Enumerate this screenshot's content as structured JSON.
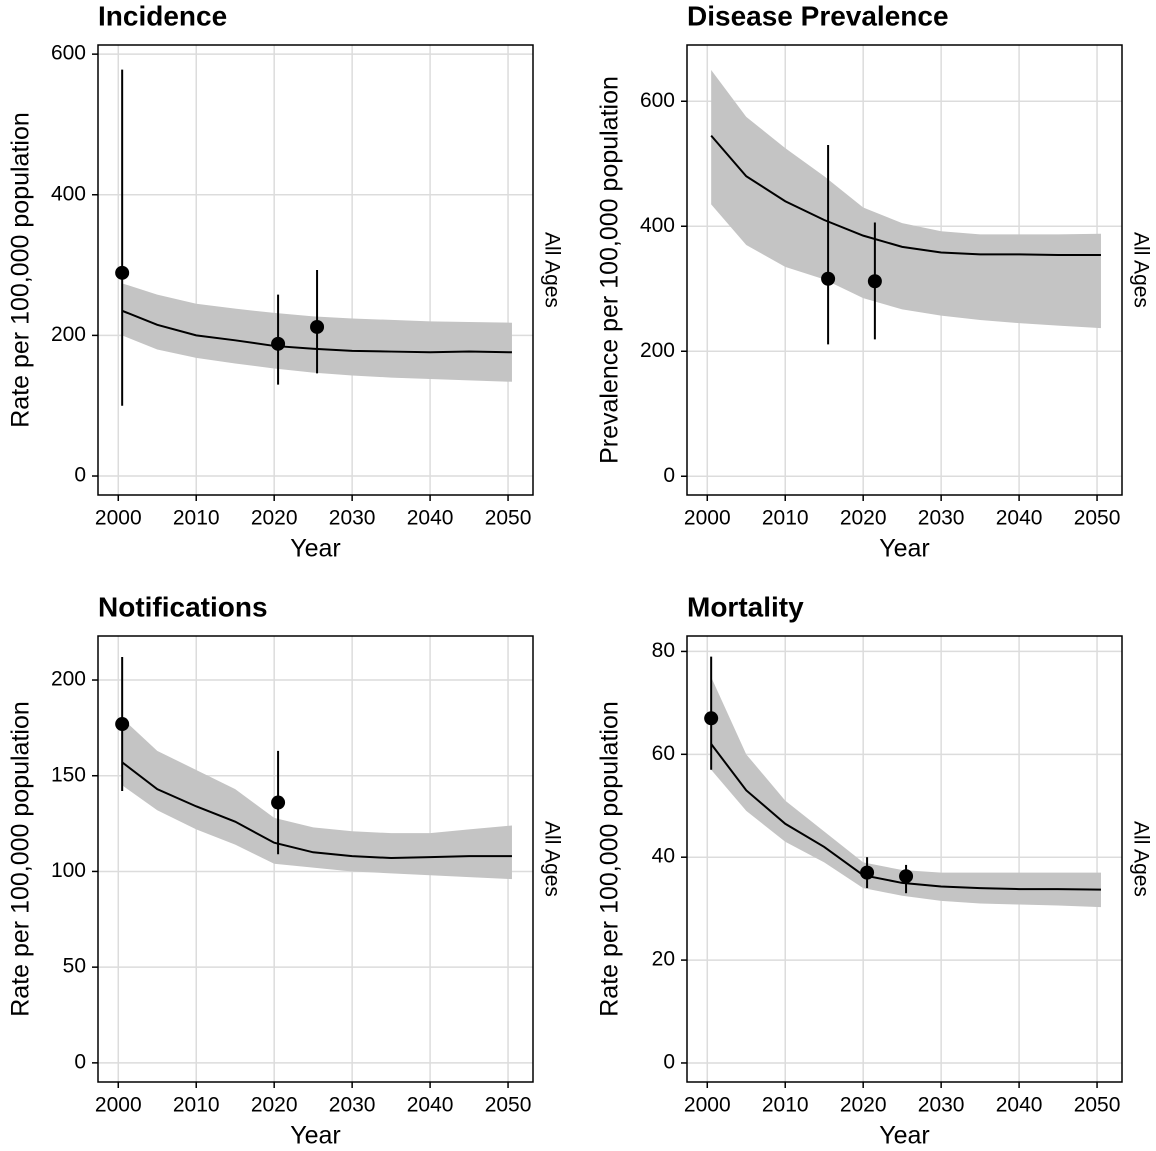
{
  "chart_data": [
    {
      "type": "line",
      "title": "Incidence",
      "xlabel": "Year",
      "ylabel": "Rate per 100,000 population",
      "facet_label": "All Ages",
      "xlim": [
        1997.4,
        2053.2
      ],
      "xticks": [
        2000,
        2010,
        2020,
        2030,
        2040,
        2050
      ],
      "ylim": [
        -27,
        613
      ],
      "yticks": [
        0,
        200,
        400,
        600
      ],
      "grid": true,
      "x": [
        2000.5,
        2005,
        2010,
        2015,
        2020,
        2025,
        2030,
        2035,
        2040,
        2045,
        2050.5
      ],
      "line": {
        "color": "#000000",
        "values": [
          235,
          215,
          200,
          193,
          185,
          181,
          178,
          177,
          176,
          177,
          176
        ]
      },
      "band": {
        "color": "#c4c4c4",
        "lower": [
          200,
          180,
          168,
          160,
          153,
          147,
          143,
          140,
          138,
          136,
          134
        ],
        "upper": [
          274,
          258,
          245,
          238,
          232,
          227,
          224,
          222,
          220,
          219,
          218
        ]
      },
      "points": {
        "color": "#000000",
        "x": [
          2000.5,
          2020.5,
          2025.5
        ],
        "values": [
          289,
          188,
          212
        ],
        "lower": [
          100,
          130,
          146
        ],
        "upper": [
          578,
          258,
          293
        ]
      }
    },
    {
      "type": "line",
      "title": "Disease Prevalence",
      "xlabel": "Year",
      "ylabel": "Prevalence per 100,000 population",
      "facet_label": "All Ages",
      "xlim": [
        1997.4,
        2053.2
      ],
      "xticks": [
        2000,
        2010,
        2020,
        2030,
        2040,
        2050
      ],
      "ylim": [
        -30,
        690
      ],
      "yticks": [
        0,
        200,
        400,
        600
      ],
      "grid": true,
      "x": [
        2000.5,
        2005,
        2010,
        2015,
        2020,
        2025,
        2030,
        2035,
        2040,
        2045,
        2050.5
      ],
      "line": {
        "color": "#000000",
        "values": [
          545,
          480,
          440,
          410,
          385,
          367,
          358,
          355,
          355,
          354,
          354
        ]
      },
      "band": {
        "color": "#c4c4c4",
        "lower": [
          435,
          370,
          335,
          315,
          285,
          267,
          257,
          250,
          245,
          241,
          237
        ],
        "upper": [
          650,
          575,
          525,
          480,
          430,
          405,
          392,
          387,
          387,
          387,
          388
        ]
      },
      "points": {
        "color": "#000000",
        "x": [
          2015.5,
          2021.5
        ],
        "values": [
          316,
          312
        ],
        "lower": [
          211,
          219
        ],
        "upper": [
          530,
          406
        ]
      }
    },
    {
      "type": "line",
      "title": "Notifications",
      "xlabel": "Year",
      "ylabel": "Rate per 100,000 population",
      "facet_label": "All Ages",
      "xlim": [
        1997.4,
        2053.2
      ],
      "xticks": [
        2000,
        2010,
        2020,
        2030,
        2040,
        2050
      ],
      "ylim": [
        -10,
        223
      ],
      "yticks": [
        0,
        50,
        100,
        150,
        200
      ],
      "grid": true,
      "x": [
        2000.5,
        2005,
        2010,
        2015,
        2020,
        2025,
        2030,
        2035,
        2040,
        2045,
        2050.5
      ],
      "line": {
        "color": "#000000",
        "values": [
          157,
          143,
          134,
          126,
          115,
          110,
          108,
          107,
          107.5,
          108,
          108
        ]
      },
      "band": {
        "color": "#c4c4c4",
        "lower": [
          145,
          132,
          122,
          114,
          104,
          102,
          100,
          99,
          98,
          97,
          96
        ],
        "upper": [
          180,
          163,
          153,
          143,
          128,
          123,
          121,
          120,
          120,
          122,
          124
        ]
      },
      "points": {
        "color": "#000000",
        "x": [
          2000.5,
          2020.5
        ],
        "values": [
          177,
          136
        ],
        "lower": [
          142,
          109
        ],
        "upper": [
          212,
          163
        ]
      }
    },
    {
      "type": "line",
      "title": "Mortality",
      "xlabel": "Year",
      "ylabel": "Rate per 100,000 population",
      "facet_label": "All Ages",
      "xlim": [
        1997.4,
        2053.2
      ],
      "xticks": [
        2000,
        2010,
        2020,
        2030,
        2040,
        2050
      ],
      "ylim": [
        -3.7,
        83
      ],
      "yticks": [
        0,
        20,
        40,
        60,
        80
      ],
      "grid": true,
      "x": [
        2000.5,
        2005,
        2010,
        2015,
        2020,
        2025,
        2030,
        2035,
        2040,
        2045,
        2050.5
      ],
      "line": {
        "color": "#000000",
        "values": [
          62,
          53,
          46.5,
          42,
          36.5,
          35,
          34.3,
          34,
          33.8,
          33.8,
          33.7
        ]
      },
      "band": {
        "color": "#c4c4c4",
        "lower": [
          57,
          49,
          43,
          39,
          34,
          32.5,
          31.5,
          31,
          30.8,
          30.6,
          30.3
        ],
        "upper": [
          75,
          60,
          51,
          45,
          39,
          37.5,
          37,
          37,
          37,
          37,
          37
        ]
      },
      "points": {
        "color": "#000000",
        "x": [
          2000.5,
          2020.5,
          2025.5
        ],
        "values": [
          67,
          37,
          36.3
        ],
        "lower": [
          57,
          34,
          33
        ],
        "upper": [
          79,
          40,
          38.5
        ]
      }
    }
  ]
}
